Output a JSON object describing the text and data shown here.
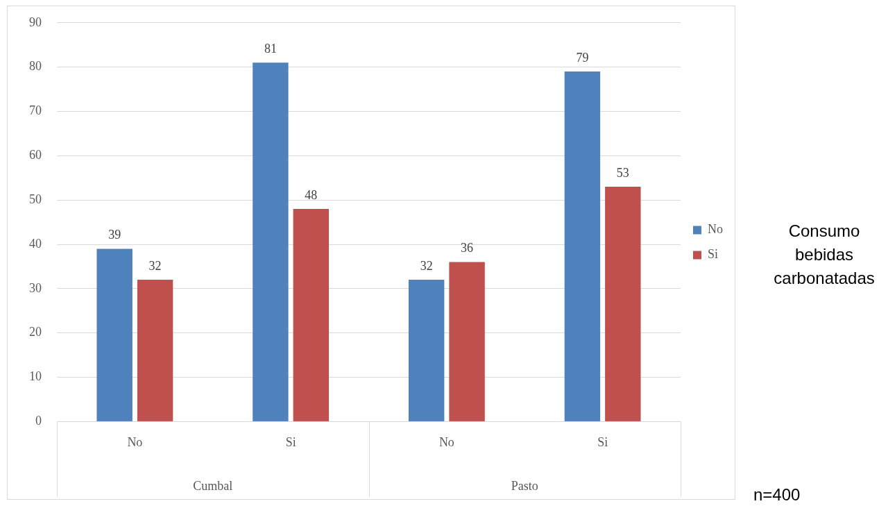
{
  "chart_data": {
    "type": "bar",
    "categories": [
      "No",
      "Si",
      "No",
      "Si"
    ],
    "series": [
      {
        "name": "No",
        "color": "#4f81bd",
        "values": [
          39,
          81,
          32,
          79
        ]
      },
      {
        "name": "Si",
        "color": "#c0504d",
        "values": [
          32,
          48,
          36,
          53
        ]
      }
    ],
    "ylim": [
      0,
      90
    ],
    "yticks": [
      0,
      10,
      20,
      30,
      40,
      50,
      60,
      70,
      80,
      90
    ],
    "grid": "y",
    "legend": "right",
    "data_labels": true,
    "legend_title": "Consumo bebidas carbonatadas",
    "annotations": [
      "Cumbal",
      "Pasto",
      "n=400"
    ]
  }
}
